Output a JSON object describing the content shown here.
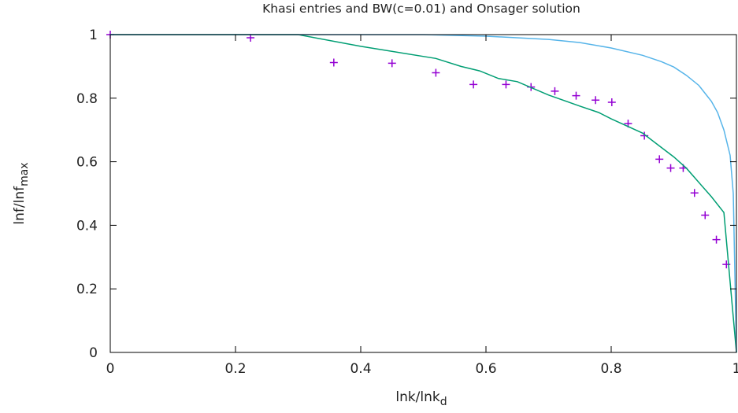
{
  "chart_data": {
    "type": "line",
    "title": "Khasi entries and BW(c=0.01) and Onsager solution",
    "xlabel": {
      "main": "lnk/lnk",
      "sub": "d"
    },
    "ylabel": {
      "main": "lnf/lnf",
      "sub": "max"
    },
    "xlim": [
      0,
      1
    ],
    "ylim": [
      0,
      1
    ],
    "xticks": [
      0,
      0.2,
      0.4,
      0.6,
      0.8,
      1
    ],
    "xtick_labels": [
      "0",
      "0.2",
      "0.4",
      "0.6",
      "0.8",
      "1"
    ],
    "yticks": [
      0,
      0.2,
      0.4,
      0.6,
      0.8,
      1
    ],
    "ytick_labels": [
      "0",
      "0.2",
      "0.4",
      "0.6",
      "0.8",
      "1"
    ],
    "grid": false,
    "legend": "none",
    "series": [
      {
        "kind": "scatter",
        "marker": "+",
        "color": "#9400d3",
        "points": [
          [
            0.0,
            1.0
          ],
          [
            0.224,
            0.99
          ],
          [
            0.357,
            0.912
          ],
          [
            0.45,
            0.91
          ],
          [
            0.52,
            0.88
          ],
          [
            0.58,
            0.843
          ],
          [
            0.632,
            0.843
          ],
          [
            0.672,
            0.835
          ],
          [
            0.71,
            0.822
          ],
          [
            0.744,
            0.808
          ],
          [
            0.775,
            0.794
          ],
          [
            0.801,
            0.787
          ],
          [
            0.827,
            0.72
          ],
          [
            0.853,
            0.682
          ],
          [
            0.877,
            0.608
          ],
          [
            0.895,
            0.58
          ],
          [
            0.915,
            0.58
          ],
          [
            0.933,
            0.502
          ],
          [
            0.95,
            0.432
          ],
          [
            0.968,
            0.355
          ],
          [
            0.984,
            0.277
          ]
        ]
      },
      {
        "kind": "line",
        "color": "#009e73",
        "points": [
          [
            0.0,
            1.0
          ],
          [
            0.3,
            1.0
          ],
          [
            0.4,
            0.963
          ],
          [
            0.52,
            0.925
          ],
          [
            0.56,
            0.9
          ],
          [
            0.59,
            0.886
          ],
          [
            0.62,
            0.862
          ],
          [
            0.65,
            0.852
          ],
          [
            0.7,
            0.81
          ],
          [
            0.75,
            0.775
          ],
          [
            0.78,
            0.755
          ],
          [
            0.8,
            0.735
          ],
          [
            0.85,
            0.69
          ],
          [
            0.88,
            0.645
          ],
          [
            0.9,
            0.615
          ],
          [
            0.92,
            0.58
          ],
          [
            0.94,
            0.535
          ],
          [
            0.96,
            0.49
          ],
          [
            0.98,
            0.44
          ],
          [
            1.0,
            0.0
          ]
        ]
      },
      {
        "kind": "line",
        "color": "#56b4e9",
        "points": [
          [
            0.0,
            1.0
          ],
          [
            0.5,
            1.0
          ],
          [
            0.6,
            0.995
          ],
          [
            0.7,
            0.985
          ],
          [
            0.75,
            0.975
          ],
          [
            0.8,
            0.958
          ],
          [
            0.85,
            0.935
          ],
          [
            0.88,
            0.915
          ],
          [
            0.9,
            0.898
          ],
          [
            0.92,
            0.872
          ],
          [
            0.94,
            0.84
          ],
          [
            0.96,
            0.79
          ],
          [
            0.97,
            0.755
          ],
          [
            0.98,
            0.7
          ],
          [
            0.99,
            0.62
          ],
          [
            0.995,
            0.5
          ],
          [
            1.0,
            0.0
          ]
        ]
      }
    ]
  }
}
